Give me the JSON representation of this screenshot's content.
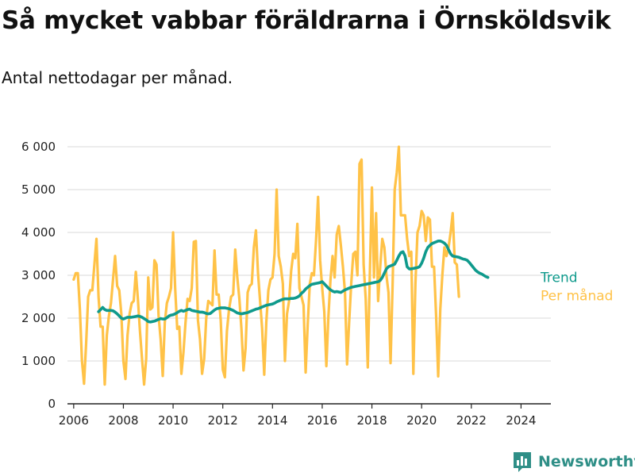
{
  "title": "Så mycket vabbar föräldrarna i Örnsköldsvik",
  "subtitle": "Antal nettodagar per månad.",
  "brand": "Newsworthy",
  "colors": {
    "trend": "#0f9a8c",
    "per_manad": "#ffc247",
    "grid": "#d9d9d9",
    "axis": "#222222",
    "brand": "#2f8f87"
  },
  "chart_data": {
    "type": "line",
    "y_tick_labels": [
      "0",
      "1 000",
      "2 000",
      "3 000",
      "4 000",
      "5 000",
      "6 000"
    ],
    "x_tick_labels": [
      "2006",
      "2008",
      "2010",
      "2012",
      "2014",
      "2016",
      "2018",
      "2020",
      "2022",
      "2024"
    ],
    "xlim": [
      2005.75,
      2025.2
    ],
    "ylim": [
      0,
      6000
    ],
    "grid": true,
    "legend": "right-end labels",
    "series": [
      {
        "name": "Per månad",
        "color": "#ffc247",
        "x_start": 2006.0,
        "step": 0.0833333,
        "values": [
          2900,
          3050,
          3050,
          2200,
          1000,
          470,
          1400,
          2500,
          2650,
          2650,
          3250,
          3850,
          2500,
          1800,
          1800,
          450,
          1600,
          2050,
          2350,
          2900,
          3450,
          2750,
          2650,
          2100,
          1000,
          580,
          1600,
          2100,
          2350,
          2400,
          3080,
          2450,
          1700,
          1050,
          450,
          1050,
          2950,
          2200,
          2250,
          3350,
          3250,
          2050,
          1500,
          650,
          1900,
          2350,
          2500,
          2700,
          4000,
          2700,
          1750,
          1800,
          700,
          1200,
          1900,
          2450,
          2400,
          2700,
          3780,
          3800,
          1950,
          1500,
          700,
          1050,
          2000,
          2400,
          2350,
          2300,
          3580,
          2550,
          2550,
          1950,
          800,
          620,
          1700,
          2200,
          2500,
          2550,
          3600,
          2950,
          2450,
          1750,
          780,
          1300,
          2600,
          2750,
          2800,
          3650,
          4050,
          3050,
          2400,
          1750,
          680,
          1900,
          2650,
          2900,
          2950,
          3500,
          5000,
          3450,
          3200,
          2800,
          1000,
          2100,
          2400,
          3100,
          3500,
          3400,
          4200,
          2700,
          2500,
          2300,
          730,
          1850,
          2800,
          3050,
          3000,
          3800,
          4830,
          3350,
          2700,
          2150,
          880,
          2050,
          2900,
          3450,
          2950,
          3950,
          4150,
          3700,
          3200,
          2600,
          920,
          1900,
          2800,
          3500,
          3550,
          3000,
          5600,
          5700,
          3250,
          2450,
          850,
          3050,
          5050,
          2950,
          4450,
          2400,
          3200,
          3850,
          3650,
          3000,
          2600,
          950,
          2800,
          5000,
          5400,
          6000,
          4400,
          4400,
          4400,
          3850,
          3450,
          3550,
          700,
          2800,
          4000,
          4150,
          4500,
          4400,
          3800,
          4350,
          4300,
          3200,
          3200,
          2050,
          640,
          2200,
          3000,
          3650,
          3450,
          3650,
          4000,
          4450,
          3300,
          3250,
          2500
        ]
      },
      {
        "name": "Trend",
        "color": "#0f9a8c",
        "x_start": 2007.0,
        "step": 0.0833333,
        "values": [
          2150,
          2200,
          2250,
          2200,
          2180,
          2180,
          2180,
          2170,
          2140,
          2100,
          2050,
          2000,
          1980,
          2000,
          2020,
          2020,
          2020,
          2030,
          2040,
          2050,
          2040,
          2020,
          1990,
          1960,
          1920,
          1910,
          1920,
          1930,
          1950,
          1970,
          1990,
          1980,
          1980,
          2010,
          2050,
          2070,
          2080,
          2100,
          2130,
          2160,
          2180,
          2160,
          2180,
          2200,
          2210,
          2180,
          2170,
          2160,
          2150,
          2140,
          2140,
          2130,
          2110,
          2100,
          2110,
          2150,
          2190,
          2220,
          2230,
          2240,
          2240,
          2240,
          2230,
          2220,
          2200,
          2180,
          2150,
          2120,
          2110,
          2100,
          2110,
          2120,
          2130,
          2150,
          2170,
          2190,
          2210,
          2220,
          2240,
          2260,
          2280,
          2300,
          2310,
          2320,
          2330,
          2350,
          2380,
          2400,
          2420,
          2440,
          2450,
          2450,
          2450,
          2460,
          2460,
          2470,
          2490,
          2520,
          2580,
          2620,
          2680,
          2720,
          2760,
          2790,
          2800,
          2810,
          2820,
          2830,
          2850,
          2800,
          2750,
          2700,
          2660,
          2630,
          2610,
          2620,
          2610,
          2600,
          2630,
          2660,
          2680,
          2700,
          2720,
          2730,
          2740,
          2750,
          2760,
          2770,
          2780,
          2790,
          2800,
          2810,
          2820,
          2830,
          2840,
          2850,
          2880,
          2950,
          3050,
          3150,
          3200,
          3220,
          3240,
          3260,
          3350,
          3450,
          3530,
          3550,
          3450,
          3200,
          3150,
          3150,
          3160,
          3170,
          3180,
          3200,
          3280,
          3400,
          3550,
          3650,
          3700,
          3740,
          3760,
          3780,
          3800,
          3800,
          3780,
          3750,
          3700,
          3600,
          3500,
          3450,
          3440,
          3430,
          3420,
          3400,
          3380,
          3370,
          3350,
          3300,
          3240,
          3180,
          3120,
          3080,
          3050,
          3030,
          3000,
          2970,
          2950
        ]
      }
    ]
  }
}
